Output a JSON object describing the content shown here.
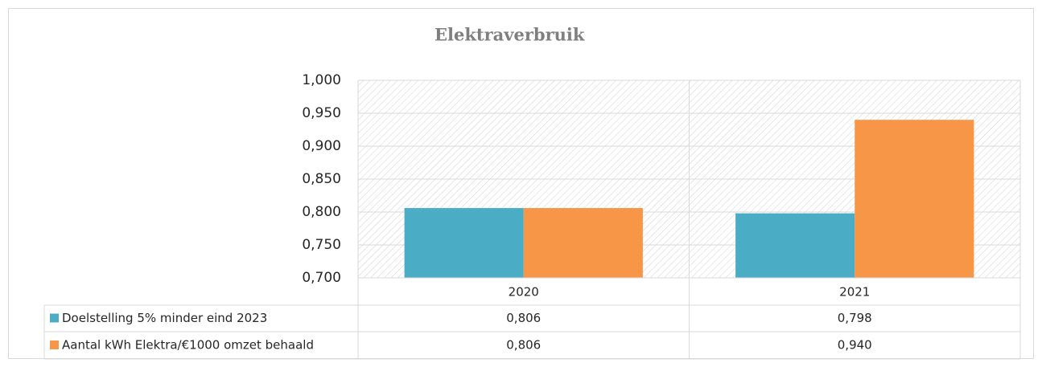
{
  "chart_data": {
    "type": "bar",
    "title": "Elektraverbruik",
    "categories": [
      "2020",
      "2021"
    ],
    "series": [
      {
        "name": "Doelstelling 5% minder eind 2023",
        "color": "#4bacc6",
        "values": [
          0.806,
          0.798
        ],
        "value_labels": [
          "0,806",
          "0,798"
        ]
      },
      {
        "name": "Aantal kWh Elektra/€1000 omzet behaald",
        "color": "#f79646",
        "values": [
          0.806,
          0.94
        ],
        "value_labels": [
          "0,806",
          "0,940"
        ]
      }
    ],
    "ylim": [
      0.7,
      1.0
    ],
    "yticks": [
      {
        "value": 0.7,
        "label": "0,700"
      },
      {
        "value": 0.75,
        "label": "0,750"
      },
      {
        "value": 0.8,
        "label": "0,800"
      },
      {
        "value": 0.85,
        "label": "0,850"
      },
      {
        "value": 0.9,
        "label": "0,900"
      },
      {
        "value": 0.95,
        "label": "0,950"
      },
      {
        "value": 1.0,
        "label": "1,000"
      }
    ],
    "grid": true
  }
}
